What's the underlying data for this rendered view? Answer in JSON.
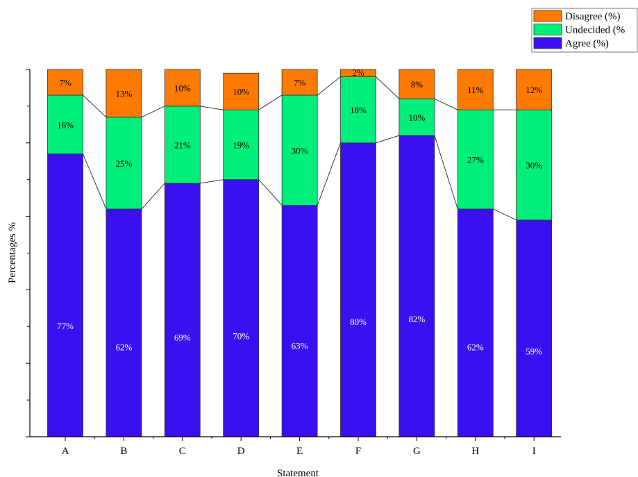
{
  "chart_data": {
    "type": "bar",
    "stacked": true,
    "categories": [
      "A",
      "B",
      "C",
      "D",
      "E",
      "F",
      "G",
      "H",
      "I"
    ],
    "series": [
      {
        "name": "Agree (%)",
        "color": "#3a10f0",
        "values": [
          77,
          62,
          69,
          70,
          63,
          80,
          82,
          62,
          59
        ],
        "labels": [
          "77%",
          "62%",
          "69%",
          "70%",
          "63%",
          "80%",
          "82%",
          "62%",
          "59%"
        ]
      },
      {
        "name": "Undecided (%",
        "color": "#00ee7a",
        "values": [
          16,
          25,
          21,
          19,
          30,
          18,
          10,
          27,
          30
        ],
        "labels": [
          "16%",
          "25%",
          "21%",
          "19%",
          "30%",
          "18%",
          "10%",
          "27%",
          "30%"
        ]
      },
      {
        "name": "Disagree (%)",
        "color": "#ff7a00",
        "values": [
          7,
          13,
          10,
          10,
          7,
          2,
          8,
          11,
          12
        ],
        "labels": [
          "7%",
          "13%",
          "10%",
          "10%",
          "7%",
          "2%",
          "8%",
          "11%",
          "12%"
        ]
      }
    ],
    "xlabel": "Statement",
    "ylabel": "Percentages %",
    "ylim": [
      0,
      100
    ],
    "y_tick_labels_shown": false,
    "legend_position": "top-right",
    "legend_order": [
      "Disagree (%)",
      "Undecided (%",
      "Agree (%)"
    ],
    "connector_lines": true
  }
}
